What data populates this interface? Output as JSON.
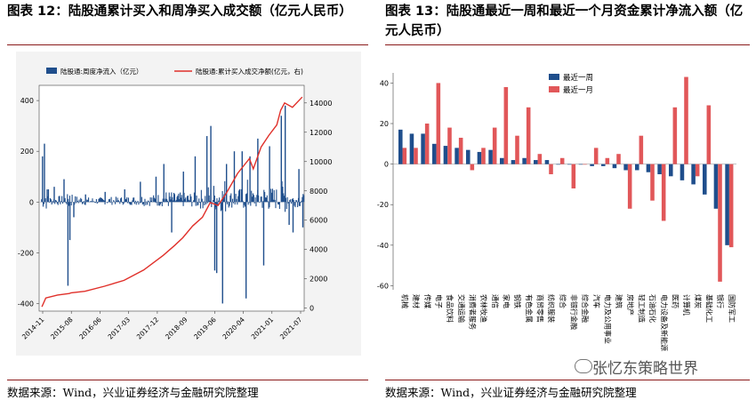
{
  "left_title": "图表 12：陆股通累计买入和周净买入成交额（亿元人民币）",
  "right_title": "图表 13：陆股通最近一周和最近一个月资金累计净流入额（亿元人民币）",
  "left_source": "数据来源：Wind，兴业证券经济与金融研究院整理",
  "right_source": "数据来源：Wind，兴业证券经济与金融研究院整理",
  "watermark": "张忆东策略世界",
  "colors": {
    "blue": "#1f4e8c",
    "red": "#e15759",
    "line": "#e0302a",
    "rule": "#8a1a1a"
  },
  "chart_data": [
    {
      "type": "bar+line",
      "title": "陆股通累计买入和周净买入成交额",
      "legend": [
        "陆股通:周度净流入（亿元）",
        "陆股通:累计买入成交净额(亿元，右)"
      ],
      "legend_position": "top",
      "x_ticks": [
        "2014-11",
        "2015-08",
        "2016-06",
        "2017-03",
        "2017-12",
        "2018-09",
        "2019-06",
        "2020-04",
        "2021-01",
        "2021-07"
      ],
      "x_range": [
        2014.83,
        2021.6
      ],
      "y_left_ticks": [
        "-400",
        "-200",
        "0",
        "200",
        "400"
      ],
      "y_left_range": [
        -430,
        460
      ],
      "y_right_ticks": [
        "0",
        "2000",
        "4000",
        "6000",
        "8000",
        "10000",
        "12000",
        "14000"
      ],
      "y_right_range": [
        -200,
        15200
      ],
      "cumulative_line": [
        [
          2014.9,
          100
        ],
        [
          2015.0,
          700
        ],
        [
          2015.3,
          900
        ],
        [
          2015.6,
          1000
        ],
        [
          2015.65,
          1050
        ],
        [
          2016.0,
          1150
        ],
        [
          2016.5,
          1500
        ],
        [
          2017.0,
          1900
        ],
        [
          2017.5,
          2600
        ],
        [
          2018.0,
          3600
        ],
        [
          2018.3,
          4300
        ],
        [
          2018.5,
          4800
        ],
        [
          2018.75,
          5600
        ],
        [
          2019.0,
          6200
        ],
        [
          2019.2,
          7200
        ],
        [
          2019.4,
          7000
        ],
        [
          2019.6,
          7800
        ],
        [
          2019.9,
          9200
        ],
        [
          2020.2,
          10200
        ],
        [
          2020.3,
          9500
        ],
        [
          2020.5,
          11000
        ],
        [
          2020.7,
          11800
        ],
        [
          2020.9,
          12500
        ],
        [
          2021.0,
          13500
        ],
        [
          2021.1,
          14000
        ],
        [
          2021.3,
          13700
        ],
        [
          2021.55,
          14400
        ]
      ],
      "weekly_flow_sample": [
        [
          2014.9,
          180
        ],
        [
          2014.95,
          230
        ],
        [
          2015.05,
          50
        ],
        [
          2015.2,
          60
        ],
        [
          2015.45,
          90
        ],
        [
          2015.55,
          -330
        ],
        [
          2015.6,
          -150
        ],
        [
          2015.7,
          -60
        ],
        [
          2016.0,
          30
        ],
        [
          2016.5,
          40
        ],
        [
          2017.0,
          50
        ],
        [
          2017.4,
          80
        ],
        [
          2017.8,
          100
        ],
        [
          2018.0,
          150
        ],
        [
          2018.2,
          -120
        ],
        [
          2018.5,
          120
        ],
        [
          2018.8,
          180
        ],
        [
          2019.1,
          260
        ],
        [
          2019.2,
          300
        ],
        [
          2019.3,
          -270
        ],
        [
          2019.35,
          -280
        ],
        [
          2019.5,
          -400
        ],
        [
          2019.6,
          150
        ],
        [
          2019.8,
          200
        ],
        [
          2020.0,
          200
        ],
        [
          2020.1,
          -380
        ],
        [
          2020.2,
          180
        ],
        [
          2020.4,
          250
        ],
        [
          2020.55,
          -250
        ],
        [
          2020.7,
          220
        ],
        [
          2021.0,
          340
        ],
        [
          2021.1,
          380
        ],
        [
          2021.2,
          -90
        ],
        [
          2021.3,
          -120
        ],
        [
          2021.45,
          130
        ],
        [
          2021.55,
          -100
        ]
      ]
    },
    {
      "type": "bar",
      "title": "陆股通最近一周和最近一个月资金累计净流入额",
      "legend_position": "top-center",
      "y_ticks": [
        "40",
        "20",
        "0",
        "-20",
        "-40",
        "-60"
      ],
      "ylim": [
        -62,
        45
      ],
      "categories": [
        "机械",
        "建材",
        "传媒",
        "电子",
        "食品饮料",
        "交通运输",
        "消费者服务",
        "农林牧渔",
        "通信",
        "家电",
        "钢铁",
        "有色金属",
        "商贸零售",
        "纺织服装",
        "综合",
        "非银行金融",
        "综合金融",
        "汽车",
        "电力及公用事业",
        "建筑",
        "房地产",
        "轻工制造",
        "石油石化",
        "电力设备及新能源",
        "医药",
        "计算机",
        "煤炭",
        "基础化工",
        "银行",
        "国防军工"
      ],
      "series": [
        {
          "name": "最近一周",
          "values": [
            17,
            15,
            15,
            10,
            9,
            8,
            7,
            6,
            7,
            3,
            2,
            3,
            2,
            2,
            0,
            0,
            0,
            -1,
            -1,
            -2,
            -3,
            -3,
            -4,
            -5,
            -6,
            -8,
            -10,
            -15,
            -22,
            -40
          ]
        },
        {
          "name": "最近一月",
          "values": [
            8,
            8,
            20,
            40,
            18,
            13,
            -3,
            8,
            18,
            38,
            14,
            28,
            5,
            -5,
            3,
            -12,
            0,
            8,
            3,
            5,
            -22,
            14,
            -18,
            -28,
            28,
            43,
            -6,
            29,
            -58,
            -41
          ]
        }
      ]
    }
  ]
}
